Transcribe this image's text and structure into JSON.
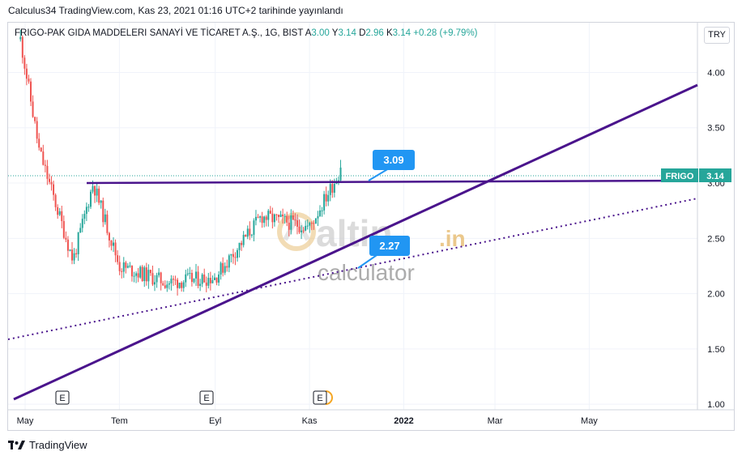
{
  "header": {
    "published": "Calculus34 TradingView.com, Kas 23, 2021 01:16 UTC+2 tarihinde yayınlandı"
  },
  "legend": {
    "symbol": "FRIGO-PAK GIDA MADDELERI SANAYİ VE TİCARET A.Ş., 1G, BIST",
    "o_label": "A",
    "o_value": "3.00",
    "h_label": "Y",
    "h_value": "3.14",
    "l_label": "D",
    "l_value": "2.96",
    "c_label": "K",
    "c_value": "3.14",
    "change": "+0.28 (+9.79%)"
  },
  "currency": "TRY",
  "price_tag": {
    "ticker": "FRIGO",
    "value": "3.14"
  },
  "callouts": {
    "upper": "3.09",
    "lower": "2.27"
  },
  "watermark": {
    "brand": "altin",
    "suffix": ".in",
    "sub": "calculator"
  },
  "earnings_marker": "E",
  "footer": {
    "brand": "TradingView"
  },
  "colors": {
    "up": "#26a69a",
    "down": "#ef5350",
    "trend": "#4a148c",
    "callout": "#2196f3",
    "tag": "#26a69a"
  },
  "chart_data": {
    "type": "candlestick",
    "x_ticks": [
      "May",
      "Tem",
      "Eyl",
      "Kas",
      "2022",
      "Mar",
      "May"
    ],
    "y_ticks": [
      "1.00",
      "1.50",
      "2.00",
      "2.50",
      "3.00",
      "3.50",
      "4.00"
    ],
    "ylim": [
      0.95,
      4.45
    ],
    "grid": true,
    "last_price": 3.14,
    "approx_close_path": [
      {
        "date": "2021-04-28",
        "close": 4.3
      },
      {
        "date": "2021-05-10",
        "close": 3.3
      },
      {
        "date": "2021-06-01",
        "close": 2.3
      },
      {
        "date": "2021-06-14",
        "close": 3.0
      },
      {
        "date": "2021-07-01",
        "close": 2.25
      },
      {
        "date": "2021-08-01",
        "close": 2.1
      },
      {
        "date": "2021-09-01",
        "close": 2.15
      },
      {
        "date": "2021-10-01",
        "close": 2.7
      },
      {
        "date": "2021-11-01",
        "close": 2.6
      },
      {
        "date": "2021-11-22",
        "close": 3.14
      }
    ],
    "lines": [
      {
        "style": "solid",
        "from": {
          "date": "2021-06-10",
          "value": 3.06
        },
        "to": {
          "date": "2022-06-30",
          "value": 3.09
        }
      },
      {
        "style": "solid",
        "from": {
          "date": "2021-04-26",
          "value": 1.03
        },
        "to": {
          "date": "2022-06-30",
          "value": 3.98
        }
      },
      {
        "style": "dotted",
        "from": {
          "date": "2021-04-26",
          "value": 1.6
        },
        "to": {
          "date": "2022-06-30",
          "value": 2.93
        }
      }
    ]
  }
}
